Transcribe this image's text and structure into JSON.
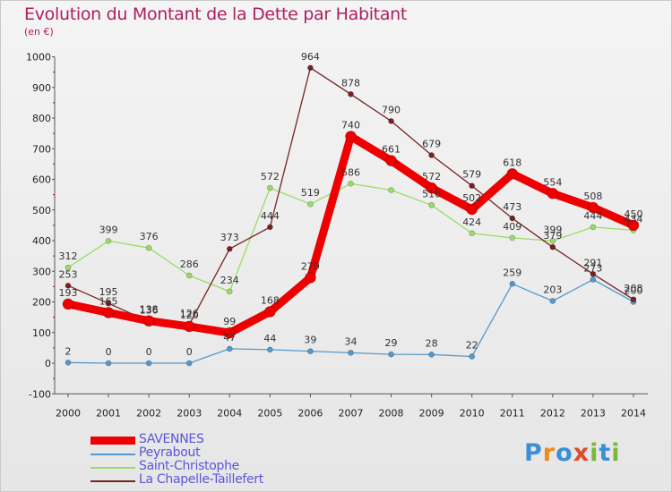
{
  "title": "Evolution du Montant de la Dette par Habitant",
  "unit_label": "(en €)",
  "logo": {
    "text": "Proxiti",
    "colors": [
      "#3a8fd6",
      "#f08a1c",
      "#3a8fd6",
      "#e04a2a",
      "#7ab83a",
      "#3a8fd6",
      "#7ab83a"
    ]
  },
  "chart_data": {
    "type": "line",
    "x": [
      "2000",
      "2001",
      "2002",
      "2003",
      "2004",
      "2005",
      "2006",
      "2007",
      "2008",
      "2009",
      "2010",
      "2011",
      "2012",
      "2013",
      "2014"
    ],
    "ylim": [
      -100,
      1000
    ],
    "yticks": [
      -100,
      0,
      100,
      200,
      300,
      400,
      500,
      600,
      700,
      800,
      900,
      1000
    ],
    "grid": false,
    "legend": "bottom-left",
    "series": [
      {
        "name": "SAVENNES",
        "color": "#ee0000",
        "values": [
          193,
          165,
          138,
          120,
          99,
          168,
          279,
          740,
          661,
          572,
          502,
          618,
          554,
          508,
          450
        ],
        "labels": [
          "193",
          "165",
          "138",
          "120",
          "99",
          "168",
          "279",
          "740",
          "661",
          "572",
          "502",
          "618",
          "554",
          "508",
          "450"
        ]
      },
      {
        "name": "Peyrabout",
        "color": "#5599cc",
        "values": [
          2,
          0,
          0,
          0,
          47,
          44,
          39,
          34,
          29,
          28,
          22,
          259,
          203,
          273,
          200
        ],
        "labels": [
          "2",
          "0",
          "0",
          "0",
          "47",
          "44",
          "39",
          "34",
          "29",
          "28",
          "22",
          "259",
          "203",
          "273",
          "200"
        ]
      },
      {
        "name": "Saint-Christophe",
        "color": "#99dd66",
        "values": [
          312,
          399,
          376,
          286,
          234,
          572,
          519,
          586,
          565,
          516,
          424,
          409,
          399,
          444,
          434
        ],
        "labels": [
          "312",
          "399",
          "376",
          "286",
          "234",
          "572",
          "519",
          "586",
          "",
          "516",
          "424",
          "409",
          "399",
          "444",
          "434"
        ]
      },
      {
        "name": "La Chapelle-Taillefert",
        "color": "#772222",
        "values": [
          253,
          195,
          136,
          126,
          373,
          444,
          964,
          878,
          790,
          679,
          579,
          473,
          379,
          291,
          208
        ],
        "labels": [
          "253",
          "195",
          "136",
          "126",
          "373",
          "444",
          "964",
          "878",
          "790",
          "679",
          "579",
          "473",
          "379",
          "291",
          "208"
        ]
      }
    ]
  }
}
